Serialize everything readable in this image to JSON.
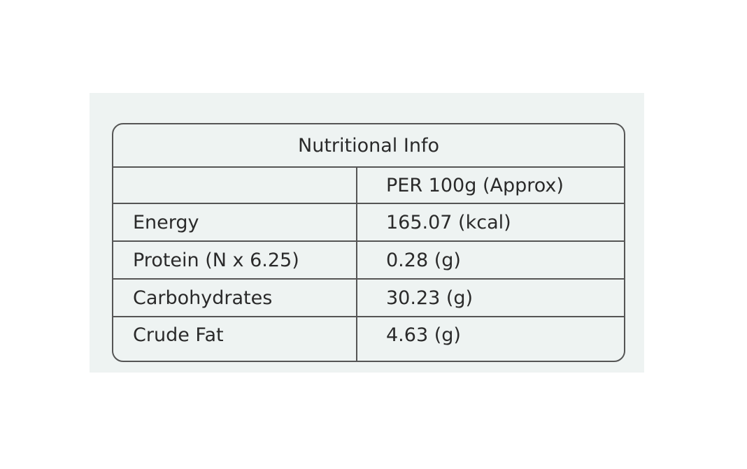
{
  "table": {
    "title": "Nutritional Info",
    "header": [
      "",
      "PER 100g (Approx)"
    ],
    "rows": [
      [
        "Energy",
        "165.07 (kcal)"
      ],
      [
        "Protein (N x 6.25)",
        "0.28 (g)"
      ],
      [
        "Carbohydrates",
        "30.23 (g)"
      ],
      [
        "Crude Fat",
        "4.63 (g)"
      ]
    ]
  }
}
